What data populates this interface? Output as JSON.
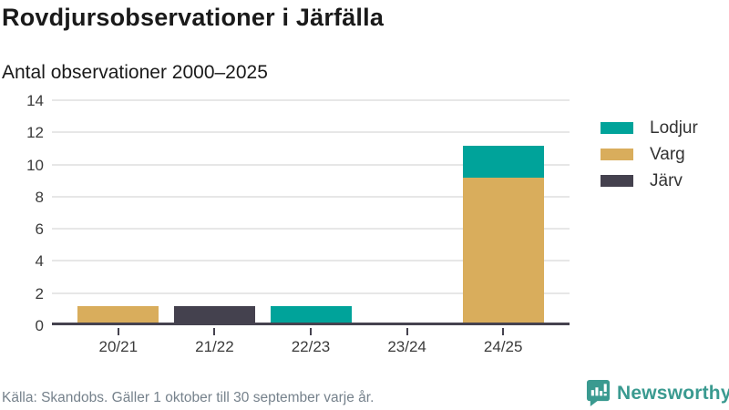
{
  "header": {
    "title": "Rovdjursobservationer i Järfälla",
    "subtitle": "Antal observationer 2000–2025"
  },
  "chart_data": {
    "type": "bar",
    "stacked": true,
    "title": "Rovdjursobservationer i Järfälla",
    "subtitle": "Antal observationer 2000–2025",
    "xlabel": "",
    "ylabel": "",
    "categories": [
      "20/21",
      "21/22",
      "22/23",
      "23/24",
      "24/25"
    ],
    "series": [
      {
        "name": "Lodjur",
        "color": "#00A39A",
        "values": [
          0,
          0,
          1,
          0,
          2
        ]
      },
      {
        "name": "Varg",
        "color": "#D9AD5C",
        "values": [
          1,
          0,
          0,
          0,
          9
        ]
      },
      {
        "name": "Järv",
        "color": "#44414E",
        "values": [
          0,
          1,
          0,
          0,
          0
        ]
      }
    ],
    "stack_order": [
      "Varg",
      "Järv",
      "Lodjur"
    ],
    "totals": [
      1,
      1,
      1,
      0,
      11
    ],
    "ylim": [
      0,
      14
    ],
    "yticks": [
      0,
      2,
      4,
      6,
      8,
      10,
      12,
      14
    ],
    "grid": true,
    "legend_position": "right"
  },
  "colors": {
    "axis": "#45424F",
    "grid": "#E7E7E7",
    "text": "#1A1A1A",
    "tick_text": "#3B3B3B",
    "muted_text": "#76828C",
    "brand": "#3A9A90"
  },
  "footer": {
    "source": "Källa: Skandobs. Gäller 1 oktober till 30 september varje år.",
    "brand": "Newsworthy"
  }
}
